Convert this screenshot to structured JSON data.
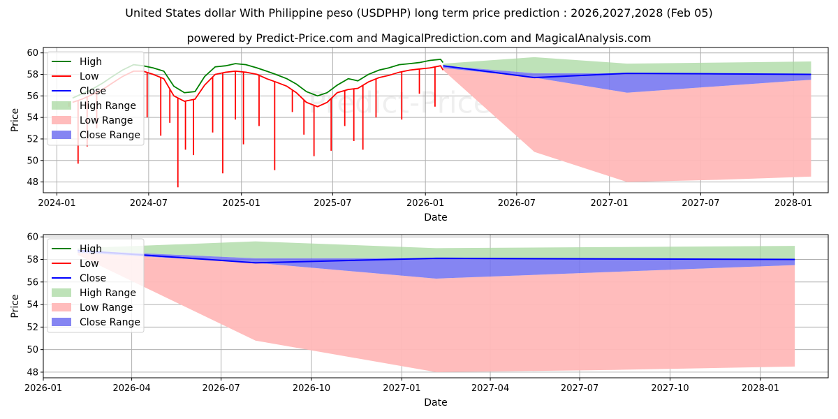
{
  "header": {
    "title": "United States dollar With Philippine peso (USDPHP) long term price prediction : 2026,2027,2028 (Feb 05)",
    "subtitle": "powered by Predict-Price.com and MagicalPrediction.com and MagicalAnalysis.com"
  },
  "watermark": "Predict-Price.com",
  "colors": {
    "high": "#008000",
    "low": "#ff0000",
    "close": "#0000ff",
    "high_range": "#a8d8a0",
    "low_range": "#ffb8b8",
    "close_range": "#7070f0"
  },
  "chart_data": [
    {
      "type": "line",
      "xlabel": "Date",
      "ylabel": "Price",
      "ylim": [
        47,
        60.5
      ],
      "xlim": [
        "2023-12-05",
        "2028-03-10"
      ],
      "yticks": [
        48,
        50,
        52,
        54,
        56,
        58,
        60
      ],
      "xticks": [
        "2024-01",
        "2024-07",
        "2025-01",
        "2025-07",
        "2026-01",
        "2026-07",
        "2027-01",
        "2027-07",
        "2028-01"
      ],
      "grid": true,
      "legend_position": "top-left",
      "legend": [
        "High",
        "Low",
        "Close",
        "High Range",
        "Low Range",
        "Close Range"
      ],
      "historical": {
        "x": [
          "2024-02-01",
          "2024-02-20",
          "2024-03-10",
          "2024-04-01",
          "2024-04-20",
          "2024-05-10",
          "2024-06-01",
          "2024-06-20",
          "2024-07-10",
          "2024-07-31",
          "2024-08-20",
          "2024-09-10",
          "2024-10-01",
          "2024-10-20",
          "2024-11-10",
          "2024-12-01",
          "2024-12-20",
          "2025-01-10",
          "2025-02-01",
          "2025-02-20",
          "2025-03-10",
          "2025-04-01",
          "2025-04-20",
          "2025-05-10",
          "2025-06-01",
          "2025-06-20",
          "2025-07-10",
          "2025-08-01",
          "2025-08-20",
          "2025-09-10",
          "2025-10-01",
          "2025-10-20",
          "2025-11-10",
          "2025-12-01",
          "2025-12-20",
          "2026-01-10",
          "2026-01-31",
          "2026-02-05"
        ],
        "high": [
          55.8,
          56.2,
          56.6,
          57.2,
          57.8,
          58.4,
          58.9,
          58.8,
          58.6,
          58.3,
          56.9,
          56.3,
          56.4,
          57.8,
          58.7,
          58.8,
          59.0,
          58.9,
          58.6,
          58.3,
          58.0,
          57.6,
          57.1,
          56.4,
          56.0,
          56.3,
          57.0,
          57.6,
          57.4,
          58.0,
          58.4,
          58.6,
          58.9,
          59.0,
          59.1,
          59.3,
          59.4,
          59.1
        ],
        "low": [
          55.4,
          55.7,
          56.1,
          56.6,
          57.2,
          57.8,
          58.3,
          58.3,
          58.0,
          57.6,
          56.0,
          55.5,
          55.7,
          57.0,
          58.0,
          58.2,
          58.3,
          58.2,
          58.0,
          57.6,
          57.3,
          56.9,
          56.3,
          55.4,
          55.0,
          55.4,
          56.3,
          56.6,
          56.7,
          57.3,
          57.7,
          57.9,
          58.2,
          58.4,
          58.5,
          58.6,
          58.8,
          58.4
        ],
        "low_spikes": [
          {
            "x": "2024-01-25",
            "value": 55.0
          },
          {
            "x": "2024-02-12",
            "value": 49.7
          },
          {
            "x": "2024-03-01",
            "value": 51.3
          },
          {
            "x": "2024-03-20",
            "value": 53.0
          },
          {
            "x": "2024-06-28",
            "value": 54.0
          },
          {
            "x": "2024-07-25",
            "value": 52.3
          },
          {
            "x": "2024-08-12",
            "value": 53.5
          },
          {
            "x": "2024-08-28",
            "value": 47.5
          },
          {
            "x": "2024-09-12",
            "value": 51.0
          },
          {
            "x": "2024-09-28",
            "value": 50.5
          },
          {
            "x": "2024-11-05",
            "value": 52.6
          },
          {
            "x": "2024-11-25",
            "value": 48.8
          },
          {
            "x": "2024-12-20",
            "value": 53.8
          },
          {
            "x": "2025-01-05",
            "value": 51.5
          },
          {
            "x": "2025-02-05",
            "value": 53.2
          },
          {
            "x": "2025-03-08",
            "value": 49.1
          },
          {
            "x": "2025-04-12",
            "value": 54.5
          },
          {
            "x": "2025-05-05",
            "value": 52.4
          },
          {
            "x": "2025-05-25",
            "value": 50.4
          },
          {
            "x": "2025-06-28",
            "value": 50.9
          },
          {
            "x": "2025-07-25",
            "value": 53.2
          },
          {
            "x": "2025-08-12",
            "value": 51.8
          },
          {
            "x": "2025-08-30",
            "value": 51.0
          },
          {
            "x": "2025-09-25",
            "value": 54.0
          },
          {
            "x": "2025-11-15",
            "value": 53.8
          },
          {
            "x": "2025-12-20",
            "value": 56.2
          },
          {
            "x": "2026-01-20",
            "value": 55.0
          }
        ]
      },
      "forecast": {
        "x": [
          "2026-02-05",
          "2026-08-05",
          "2027-02-05",
          "2027-08-05",
          "2028-02-05"
        ],
        "close": [
          58.8,
          57.7,
          58.1,
          58.05,
          58.0
        ],
        "high_range": {
          "upper": [
            59.0,
            59.6,
            59.0,
            59.1,
            59.2
          ],
          "lower": [
            58.8,
            58.1,
            58.1,
            58.05,
            58.0
          ]
        },
        "low_range": {
          "upper": [
            58.6,
            57.7,
            56.3,
            56.9,
            57.5
          ],
          "lower": [
            58.4,
            50.8,
            48.0,
            48.2,
            48.5
          ]
        },
        "close_range": {
          "upper": [
            58.8,
            58.1,
            58.1,
            58.05,
            58.0
          ],
          "lower": [
            58.6,
            57.7,
            56.3,
            56.9,
            57.5
          ]
        }
      }
    },
    {
      "type": "line",
      "xlabel": "Date",
      "ylabel": "Price",
      "ylim": [
        47.5,
        60.2
      ],
      "xlim": [
        "2026-01-01",
        "2028-03-10"
      ],
      "yticks": [
        48,
        50,
        52,
        54,
        56,
        58,
        60
      ],
      "xticks": [
        "2026-01",
        "2026-04",
        "2026-07",
        "2026-10",
        "2027-01",
        "2027-04",
        "2027-07",
        "2027-10",
        "2028-01"
      ],
      "grid": true,
      "legend_position": "top-left",
      "legend": [
        "High",
        "Low",
        "Close",
        "High Range",
        "Low Range",
        "Close Range"
      ],
      "forecast": {
        "x": [
          "2026-02-05",
          "2026-08-05",
          "2027-02-05",
          "2027-08-05",
          "2028-02-05"
        ],
        "close": [
          58.8,
          57.7,
          58.1,
          58.05,
          58.0
        ],
        "high_range": {
          "upper": [
            59.0,
            59.6,
            59.0,
            59.1,
            59.2
          ],
          "lower": [
            58.8,
            58.1,
            58.1,
            58.05,
            58.0
          ]
        },
        "low_range": {
          "upper": [
            58.6,
            57.7,
            56.3,
            56.9,
            57.5
          ],
          "lower": [
            58.4,
            50.8,
            48.0,
            48.2,
            48.5
          ]
        },
        "close_range": {
          "upper": [
            58.8,
            58.1,
            58.1,
            58.05,
            58.0
          ],
          "lower": [
            58.6,
            57.7,
            56.3,
            56.9,
            57.5
          ]
        }
      }
    }
  ]
}
